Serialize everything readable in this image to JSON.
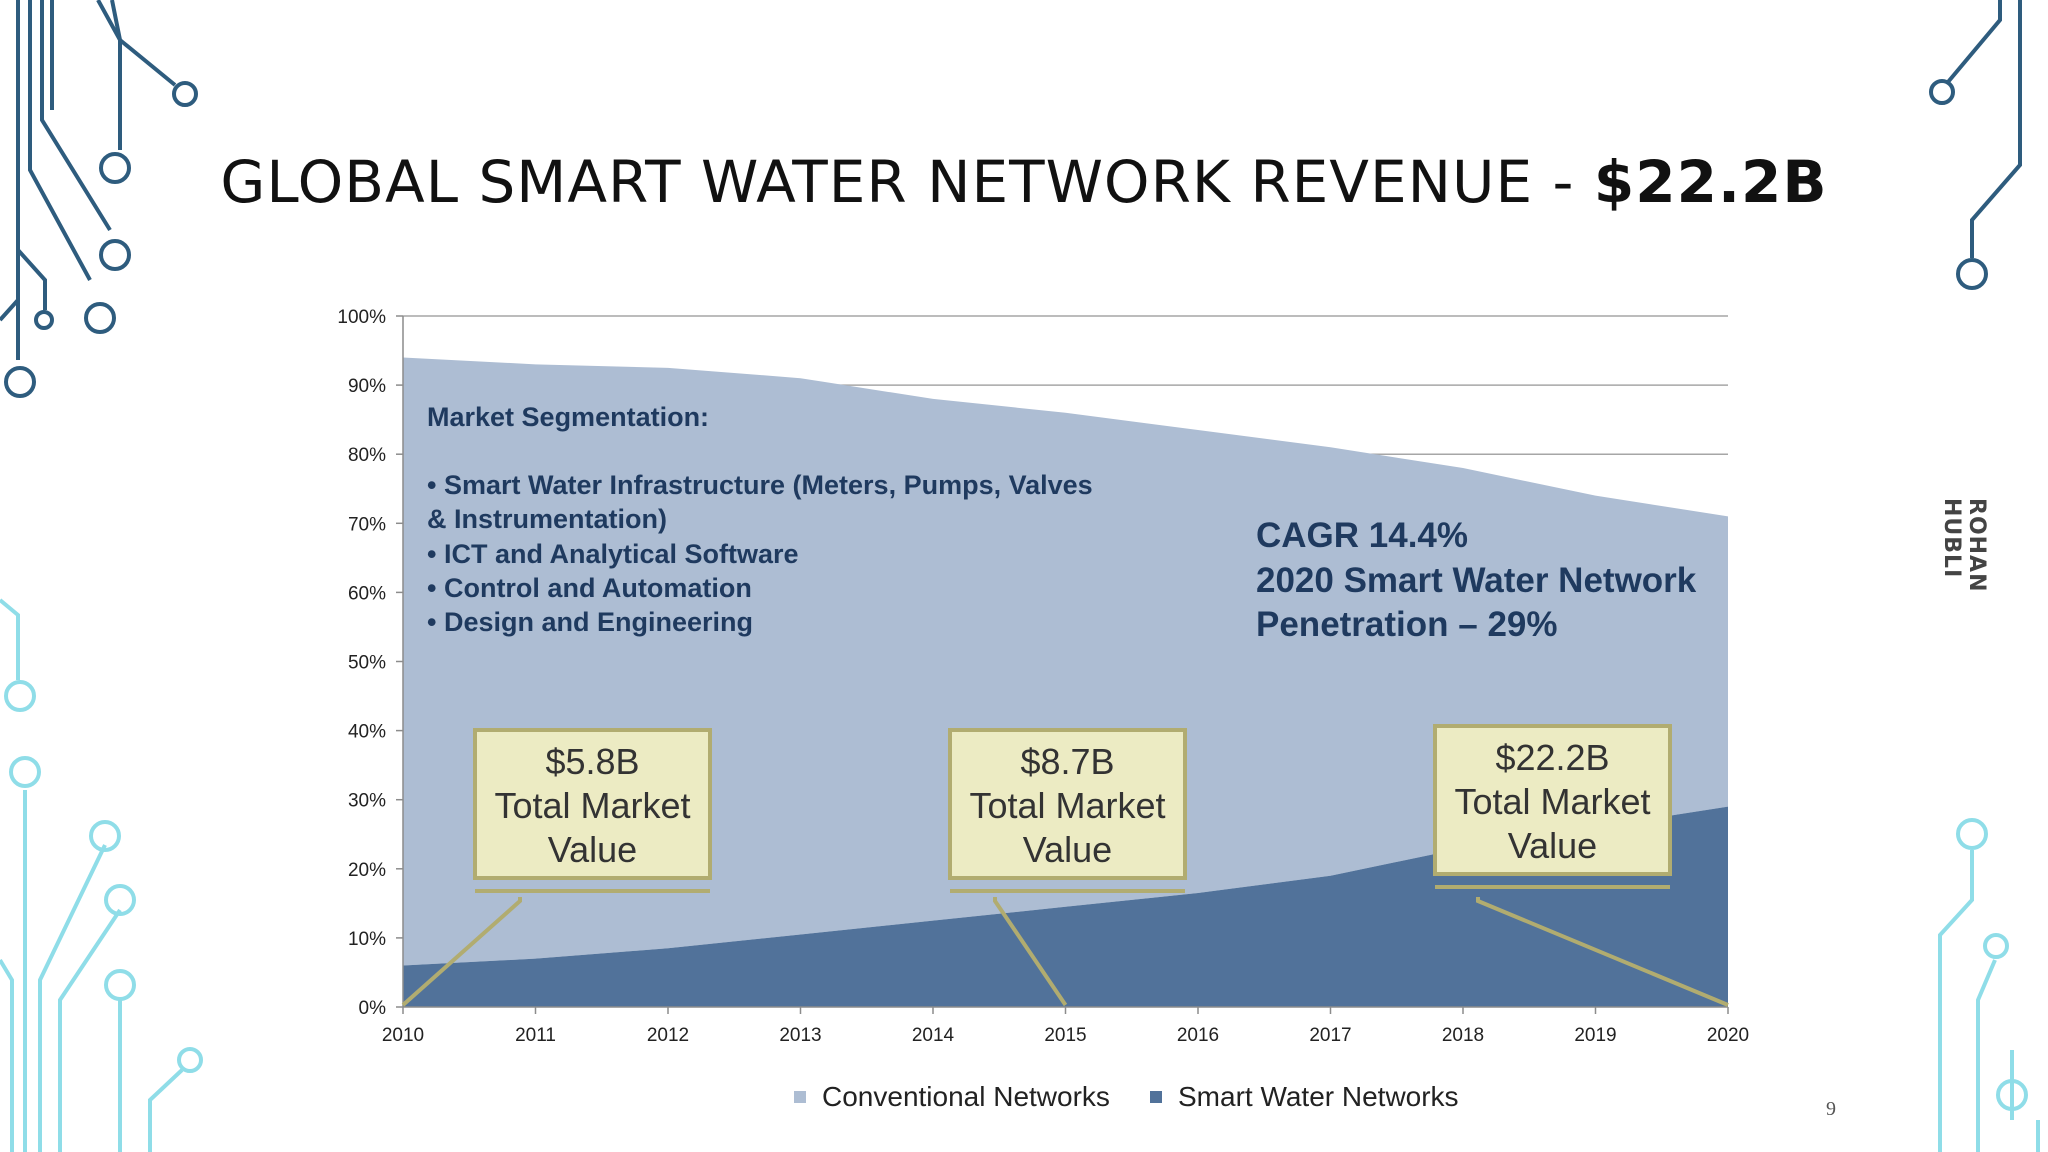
{
  "slide": {
    "title_main": "GLOBAL SMART WATER NETWORK REVENUE - ",
    "title_bold": "$22.2B",
    "side_label": "ROHAN HUBLI",
    "page_number": "9"
  },
  "colors": {
    "conventional": "#adbdd3",
    "smart": "#51729a",
    "callout_fill": "#ecebc3",
    "callout_border": "#b1ac70",
    "text_navy": "#1f3a5f",
    "circuit_dark": "#2e5c7e",
    "circuit_light": "#8fdde8"
  },
  "chart_data": {
    "type": "area",
    "stacked": true,
    "percent_axis": true,
    "x": [
      2010,
      2011,
      2012,
      2013,
      2014,
      2015,
      2016,
      2017,
      2018,
      2019,
      2020
    ],
    "x_tick_labels": [
      "2010",
      "2011",
      "2012",
      "2013",
      "2014",
      "2015",
      "2016",
      "2017",
      "2018",
      "2019",
      "2020"
    ],
    "y_tick_labels": [
      "0%",
      "10%",
      "20%",
      "30%",
      "40%",
      "50%",
      "60%",
      "70%",
      "80%",
      "90%",
      "100%"
    ],
    "ylim": [
      0,
      100
    ],
    "gridlines": [
      80,
      90,
      100
    ],
    "series": [
      {
        "name": "Smart Water Networks",
        "values": [
          6,
          7,
          8.5,
          10.5,
          12.5,
          14.5,
          16.5,
          19,
          23,
          26,
          29
        ]
      },
      {
        "name": "Conventional Networks",
        "values": [
          88,
          86,
          84,
          80.5,
          75.5,
          71.5,
          67,
          62,
          55,
          48,
          42
        ]
      }
    ],
    "legend": [
      "Conventional Networks",
      "Smart Water Networks"
    ],
    "legend_position": "bottom",
    "segmentation_heading": "Market Segmentation:",
    "segmentation_items": [
      "• Smart Water Infrastructure (Meters, Pumps, Valves",
      "& Instrumentation)",
      "• ICT and Analytical Software",
      "• Control and Automation",
      "• Design and Engineering"
    ],
    "cagr_lines": [
      "CAGR 14.4%",
      "2020 Smart Water Network",
      "Penetration – 29%"
    ],
    "callouts": [
      {
        "lines": [
          "$5.8B",
          "Total Market",
          "Value"
        ],
        "year": 2010
      },
      {
        "lines": [
          "$8.7B",
          "Total Market",
          "Value"
        ],
        "year": 2015
      },
      {
        "lines": [
          "$22.2B",
          "Total Market",
          "Value"
        ],
        "year": 2020
      }
    ]
  }
}
